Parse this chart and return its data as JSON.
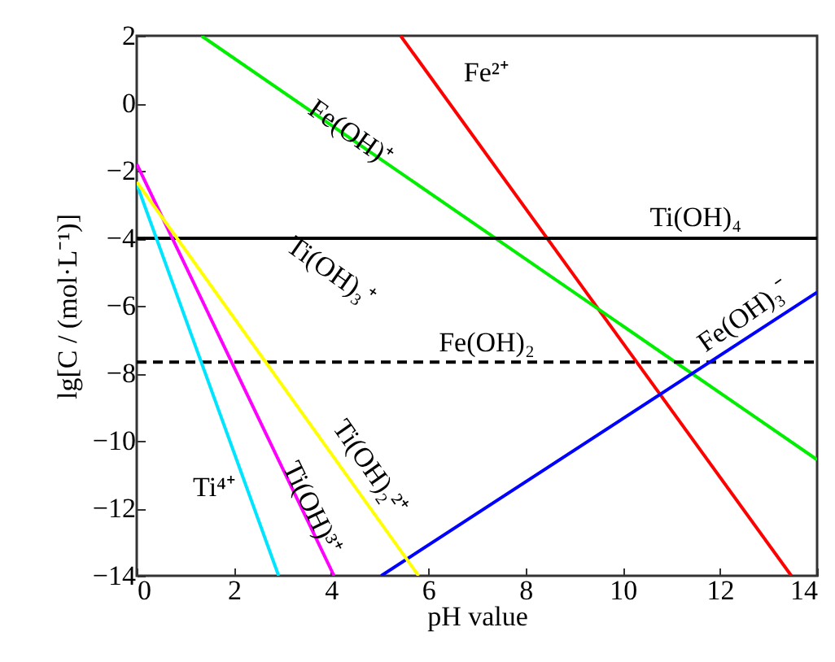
{
  "chart_data": {
    "type": "line",
    "xlabel": "pH value",
    "ylabel": "lg[C / (mol·L⁻¹)]",
    "xlim": [
      0,
      14
    ],
    "ylim": [
      -14,
      2
    ],
    "xticks": [
      0,
      2,
      4,
      6,
      8,
      10,
      12,
      14
    ],
    "yticks": [
      -14,
      -12,
      -10,
      -8,
      -6,
      -4,
      -2,
      0,
      2
    ],
    "grid": false,
    "marker": "none",
    "series": [
      {
        "name": "Fe²⁺",
        "color": "#ff0000",
        "x": [
          5.43,
          13.47
        ],
        "values": [
          2,
          -14
        ]
      },
      {
        "name": "Fe(OH)⁺",
        "color": "#00ee00",
        "x": [
          1.33,
          14
        ],
        "values": [
          2,
          -10.56
        ]
      },
      {
        "name": "Ti(OH)₄",
        "color": "#000000",
        "x": [
          0,
          14
        ],
        "values": [
          -4,
          -4
        ]
      },
      {
        "name": "Fe(OH)₂",
        "color": "#000000",
        "x": [
          0,
          14
        ],
        "values": [
          -7.67,
          -7.67
        ],
        "line_style": "dashed"
      },
      {
        "name": "Fe(OH)₃⁻",
        "color": "#0000ff",
        "x": [
          5.03,
          14
        ],
        "values": [
          -14,
          -5.6
        ]
      },
      {
        "name": "Ti⁴⁺",
        "color": "#00e5ff",
        "x": [
          0,
          2.92
        ],
        "values": [
          -2.39,
          -14
        ]
      },
      {
        "name": "Ti(OH)³⁺",
        "color": "#ff00ff",
        "x": [
          0,
          4.06
        ],
        "values": [
          -1.8,
          -14
        ]
      },
      {
        "name": "Ti(OH)₂²⁺",
        "color": "#ffff00",
        "x": [
          0,
          5.8
        ],
        "values": [
          -2.33,
          -14
        ]
      }
    ],
    "annotations": [
      "Ti(OH)₃⁺"
    ]
  }
}
